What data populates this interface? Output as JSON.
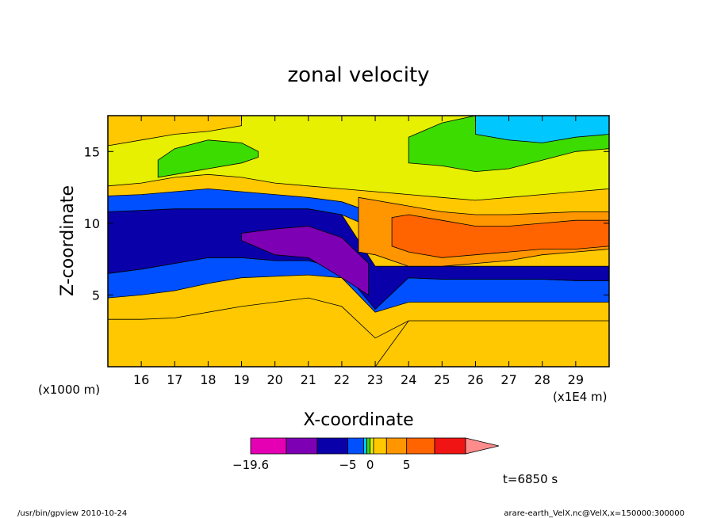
{
  "footer": {
    "left": "/usr/bin/gpview  2010-10-24",
    "right": "arare-earth_VelX.nc@VelX,x=150000:300000"
  },
  "time_label": "t=6850 s",
  "chart_data": {
    "type": "heatmap",
    "title": "zonal velocity",
    "xlabel": "X-coordinate",
    "ylabel": "Z-coordinate",
    "x_unit": "(x1E4 m)",
    "y_unit": "(x1000 m)",
    "xlim": [
      15,
      30
    ],
    "ylim": [
      0,
      17.5
    ],
    "xticks": [
      16,
      17,
      18,
      19,
      20,
      21,
      22,
      23,
      24,
      25,
      26,
      27,
      28,
      29
    ],
    "yticks": [
      5,
      10,
      15
    ],
    "colorbar": {
      "ticks": [
        {
          "value": -19.6,
          "label": "−19.6"
        },
        {
          "value": -5,
          "label": "−5"
        },
        {
          "value": 0,
          "label": "0"
        },
        {
          "value": 5,
          "label": "5"
        }
      ],
      "colors": [
        "#e600b4",
        "#7d00b4",
        "#0a00aa",
        "#0050ff",
        "#00c8ff",
        "#3cdc00",
        "#e6f000",
        "#ffc800",
        "#ff9600",
        "#ff6400",
        "#f01414",
        "#ff8c8c"
      ],
      "extend_max": true
    },
    "bands": [
      {
        "name": "surface-orange",
        "color": "#ffc800",
        "xs": [
          15,
          16,
          17,
          18,
          19,
          20,
          21,
          22,
          23,
          24,
          25,
          26,
          27,
          28,
          29,
          30
        ],
        "lo": [
          0,
          0,
          0,
          0,
          0,
          0,
          0,
          0,
          0,
          3.2,
          3.2,
          3.2,
          3.2,
          3.2,
          3.2,
          3.2
        ],
        "hi": [
          3.3,
          3.3,
          3.4,
          3.8,
          4.2,
          4.5,
          4.8,
          4.2,
          2.0,
          3.2,
          3.2,
          3.2,
          3.2,
          3.2,
          3.2,
          3.2
        ]
      },
      {
        "name": "low-blue",
        "color": "#0050ff",
        "xs": [
          15,
          16,
          17,
          18,
          19,
          20,
          21,
          22,
          23,
          24,
          25,
          26,
          27,
          28,
          29,
          30
        ],
        "lo": [
          4.8,
          5.0,
          5.3,
          5.8,
          6.2,
          6.3,
          6.4,
          6.2,
          3.8,
          4.5,
          4.5,
          4.5,
          4.5,
          4.5,
          4.5,
          4.5
        ],
        "hi": [
          6.5,
          6.8,
          7.2,
          7.6,
          7.6,
          7.4,
          7.4,
          6.8,
          4.8,
          6.2,
          6.1,
          6.1,
          6.1,
          6.1,
          6.0,
          6.0
        ]
      },
      {
        "name": "mid-navy",
        "color": "#0a00aa",
        "xs": [
          15,
          16,
          17,
          18,
          19,
          20,
          21,
          22,
          23,
          24,
          25,
          26,
          27,
          28,
          29,
          30
        ],
        "lo": [
          6.5,
          6.8,
          7.2,
          7.6,
          7.6,
          7.4,
          7.4,
          6.8,
          4.0,
          6.2,
          6.1,
          6.1,
          6.1,
          6.1,
          6.0,
          6.0
        ],
        "hi": [
          10.8,
          10.9,
          11.0,
          11.0,
          11.0,
          11.0,
          11.0,
          10.6,
          7.0,
          7.0,
          7.0,
          7.0,
          7.0,
          7.0,
          7.0,
          7.0
        ]
      },
      {
        "name": "mid-purple",
        "color": "#7d00b4",
        "xs": [
          19,
          20,
          21,
          22,
          22.8
        ],
        "lo": [
          8.8,
          7.8,
          7.6,
          6.2,
          5.0
        ],
        "hi": [
          9.3,
          9.6,
          9.8,
          9.0,
          7.2
        ]
      },
      {
        "name": "upper-blue",
        "color": "#0050ff",
        "xs": [
          15,
          16,
          17,
          18,
          19,
          20,
          21,
          22,
          22.6
        ],
        "lo": [
          10.8,
          10.9,
          11.0,
          11.0,
          11.0,
          11.0,
          11.0,
          10.6,
          10.0
        ],
        "hi": [
          11.9,
          12.0,
          12.2,
          12.4,
          12.2,
          12.0,
          11.8,
          11.5,
          11.0
        ]
      },
      {
        "name": "upper-orange",
        "color": "#ff9600",
        "xs": [
          22.5,
          23,
          24,
          25,
          26,
          27,
          28,
          29,
          30
        ],
        "lo": [
          8.0,
          7.8,
          7.0,
          7.0,
          7.2,
          7.4,
          7.8,
          8.0,
          8.2
        ],
        "hi": [
          11.8,
          11.6,
          11.2,
          10.8,
          10.6,
          10.6,
          10.7,
          10.8,
          10.8
        ]
      },
      {
        "name": "upper-dark-orange",
        "color": "#ff6400",
        "xs": [
          23.5,
          24,
          25,
          26,
          27,
          28,
          29,
          30
        ],
        "lo": [
          8.4,
          8.0,
          7.6,
          7.8,
          8.0,
          8.2,
          8.2,
          8.4
        ],
        "hi": [
          10.4,
          10.6,
          10.2,
          9.8,
          9.8,
          10.0,
          10.2,
          10.2
        ]
      },
      {
        "name": "top-yellow",
        "color": "#e6f000",
        "xs": [
          15,
          16,
          17,
          18,
          19,
          20,
          21,
          22,
          23,
          24,
          25,
          26,
          27,
          28,
          29,
          30
        ],
        "lo": [
          12.6,
          12.8,
          13.2,
          13.4,
          13.2,
          12.8,
          12.6,
          12.4,
          12.2,
          12.0,
          11.8,
          11.6,
          11.8,
          12.0,
          12.2,
          12.4
        ],
        "hi": [
          17.5,
          17.5,
          17.5,
          17.5,
          17.5,
          17.5,
          17.5,
          17.5,
          17.5,
          17.5,
          17.5,
          17.5,
          17.5,
          17.5,
          17.5,
          17.5
        ]
      },
      {
        "name": "top-green",
        "color": "#3cdc00",
        "xs": [
          16.5,
          17,
          18,
          19,
          19.5
        ],
        "lo": [
          13.2,
          13.4,
          13.8,
          14.2,
          14.6
        ],
        "hi": [
          14.4,
          15.2,
          15.8,
          15.6,
          15.0
        ]
      },
      {
        "name": "top-right-green",
        "color": "#3cdc00",
        "xs": [
          24,
          25,
          26,
          27,
          28,
          29,
          30
        ],
        "lo": [
          14.2,
          14.0,
          13.6,
          13.8,
          14.4,
          15.0,
          15.2
        ],
        "hi": [
          16.0,
          17.0,
          17.5,
          17.5,
          17.5,
          17.5,
          17.5
        ]
      },
      {
        "name": "top-right-cyan",
        "color": "#00c8ff",
        "xs": [
          26,
          27,
          28,
          29,
          30
        ],
        "lo": [
          16.2,
          15.8,
          15.6,
          16.0,
          16.2
        ],
        "hi": [
          17.5,
          17.5,
          17.5,
          17.5,
          17.5
        ]
      },
      {
        "name": "top-left-orange",
        "color": "#ffc800",
        "xs": [
          15,
          16,
          17,
          18,
          19
        ],
        "lo": [
          15.4,
          15.8,
          16.2,
          16.4,
          16.8
        ],
        "hi": [
          17.5,
          17.5,
          17.5,
          17.5,
          17.5
        ]
      }
    ]
  }
}
